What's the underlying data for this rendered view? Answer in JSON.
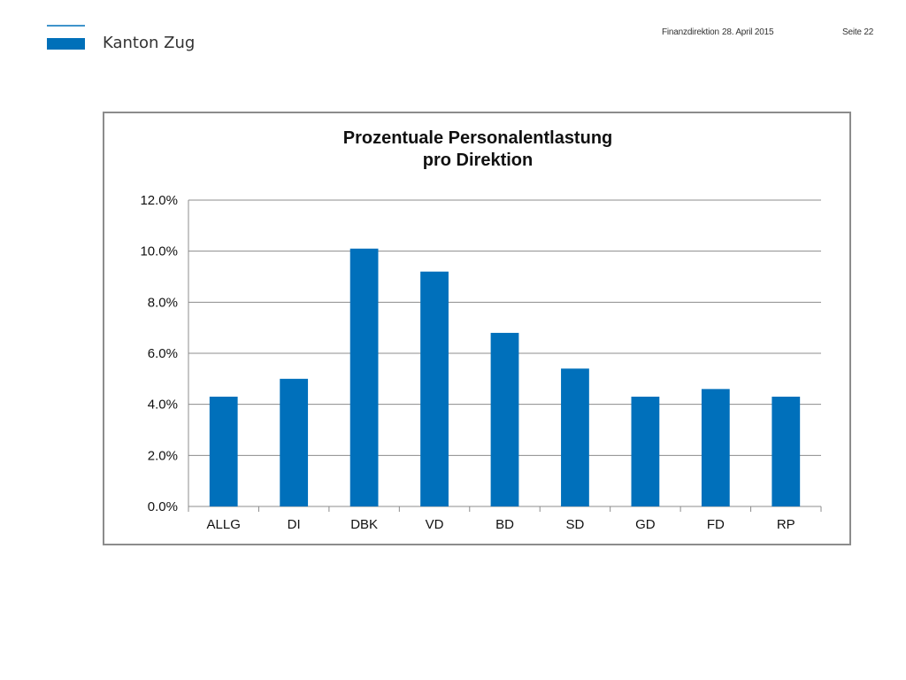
{
  "header": {
    "logo_text": "Kanton Zug",
    "department": "Finanzdirektion",
    "date": "28. April 2015",
    "page": "Seite 22"
  },
  "colors": {
    "brand": "#0070b9",
    "bar": "#0070bb",
    "grid": "#8c8c8c",
    "frame": "#8c8c8c"
  },
  "chart_data": {
    "type": "bar",
    "title": "Prozentuale Personalentlastung pro Direktion",
    "title_lines": [
      "Prozentuale Personalentlastung",
      "pro Direktion"
    ],
    "xlabel": "",
    "ylabel": "",
    "categories": [
      "ALLG",
      "DI",
      "DBK",
      "VD",
      "BD",
      "SD",
      "GD",
      "FD",
      "RP"
    ],
    "values": [
      0.043,
      0.05,
      0.101,
      0.092,
      0.068,
      0.054,
      0.043,
      0.046,
      0.043
    ],
    "ylim": [
      0,
      0.12
    ],
    "yticks": [
      0,
      0.02,
      0.04,
      0.06,
      0.08,
      0.1,
      0.12
    ],
    "ytick_labels": [
      "0.0%",
      "2.0%",
      "4.0%",
      "6.0%",
      "8.0%",
      "10.0%",
      "12.0%"
    ],
    "grid": true,
    "legend": "none"
  }
}
